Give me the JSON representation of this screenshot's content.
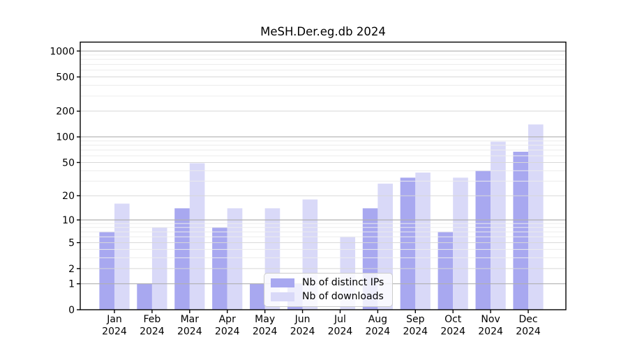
{
  "chart_data": {
    "type": "bar",
    "title": "MeSH.Der.eg.db 2024",
    "year": "2024",
    "months": [
      "Jan",
      "Feb",
      "Mar",
      "Apr",
      "May",
      "Jun",
      "Jul",
      "Aug",
      "Sep",
      "Oct",
      "Nov",
      "Dec"
    ],
    "categories": [
      "Jan 2024",
      "Feb 2024",
      "Mar 2024",
      "Apr 2024",
      "May 2024",
      "Jun 2024",
      "Jul 2024",
      "Aug 2024",
      "Sep 2024",
      "Oct 2024",
      "Nov 2024",
      "Dec 2024"
    ],
    "series": [
      {
        "name": "Nb of distinct IPs",
        "color": "#a8a8f0",
        "values": [
          7,
          1,
          14,
          8,
          1,
          1,
          0,
          14,
          33,
          7,
          40,
          67
        ]
      },
      {
        "name": "Nb of downloads",
        "color": "#d9d9f8",
        "values": [
          16,
          8,
          49,
          14,
          14,
          18,
          6,
          28,
          38,
          33,
          88,
          140
        ]
      }
    ],
    "xlabel": "",
    "ylabel": "",
    "y_scale": "log1p",
    "ylim": [
      0,
      1270
    ],
    "y_ticks": [
      0,
      1,
      2,
      5,
      10,
      20,
      50,
      100,
      200,
      500,
      1000
    ],
    "y_minor_ticks": [
      3,
      4,
      6,
      7,
      8,
      9,
      30,
      40,
      60,
      70,
      80,
      90,
      300,
      400,
      600,
      700,
      800,
      900
    ],
    "grid": "on",
    "legend_position": "bottom-center",
    "colors": {
      "decade_gridline": "#b0b0b0",
      "major_gridline": "#d8d8d8",
      "minor_gridline": "#ececec",
      "axis": "#000000",
      "text": "#000000"
    }
  }
}
